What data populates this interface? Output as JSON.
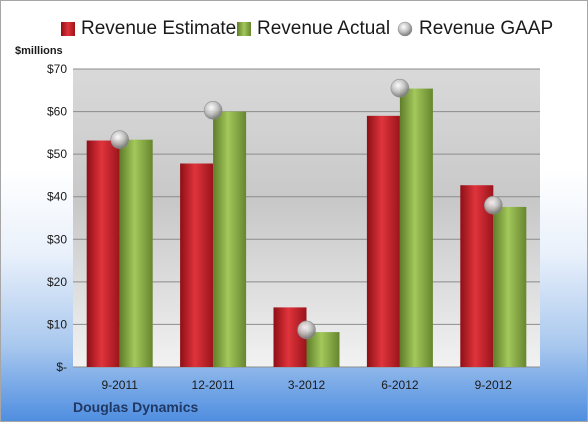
{
  "chart_data": {
    "type": "bar",
    "categories": [
      "9-2011",
      "12-2011",
      "3-2012",
      "6-2012",
      "9-2012"
    ],
    "series": [
      {
        "name": "Revenue Estimate",
        "type": "bar",
        "color": "#c0202a",
        "values": [
          53.2,
          47.8,
          14.0,
          59.0,
          42.7
        ]
      },
      {
        "name": "Revenue Actual",
        "type": "bar",
        "color": "#84a83f",
        "values": [
          53.4,
          60.0,
          8.2,
          65.4,
          37.6
        ]
      },
      {
        "name": "Revenue GAAP",
        "type": "marker",
        "color": "#b8b8b8",
        "values": [
          53.4,
          60.3,
          8.7,
          65.5,
          38.0
        ]
      }
    ],
    "ylabel": "$millions",
    "ylim": [
      0,
      70
    ],
    "yticks": [
      0,
      10,
      20,
      30,
      40,
      50,
      60,
      70
    ],
    "ytick_labels": [
      "$-",
      "$10",
      "$20",
      "$30",
      "$40",
      "$50",
      "$60",
      "$70"
    ],
    "grid": true,
    "legend_position": "top"
  },
  "company_name": "Douglas Dynamics"
}
